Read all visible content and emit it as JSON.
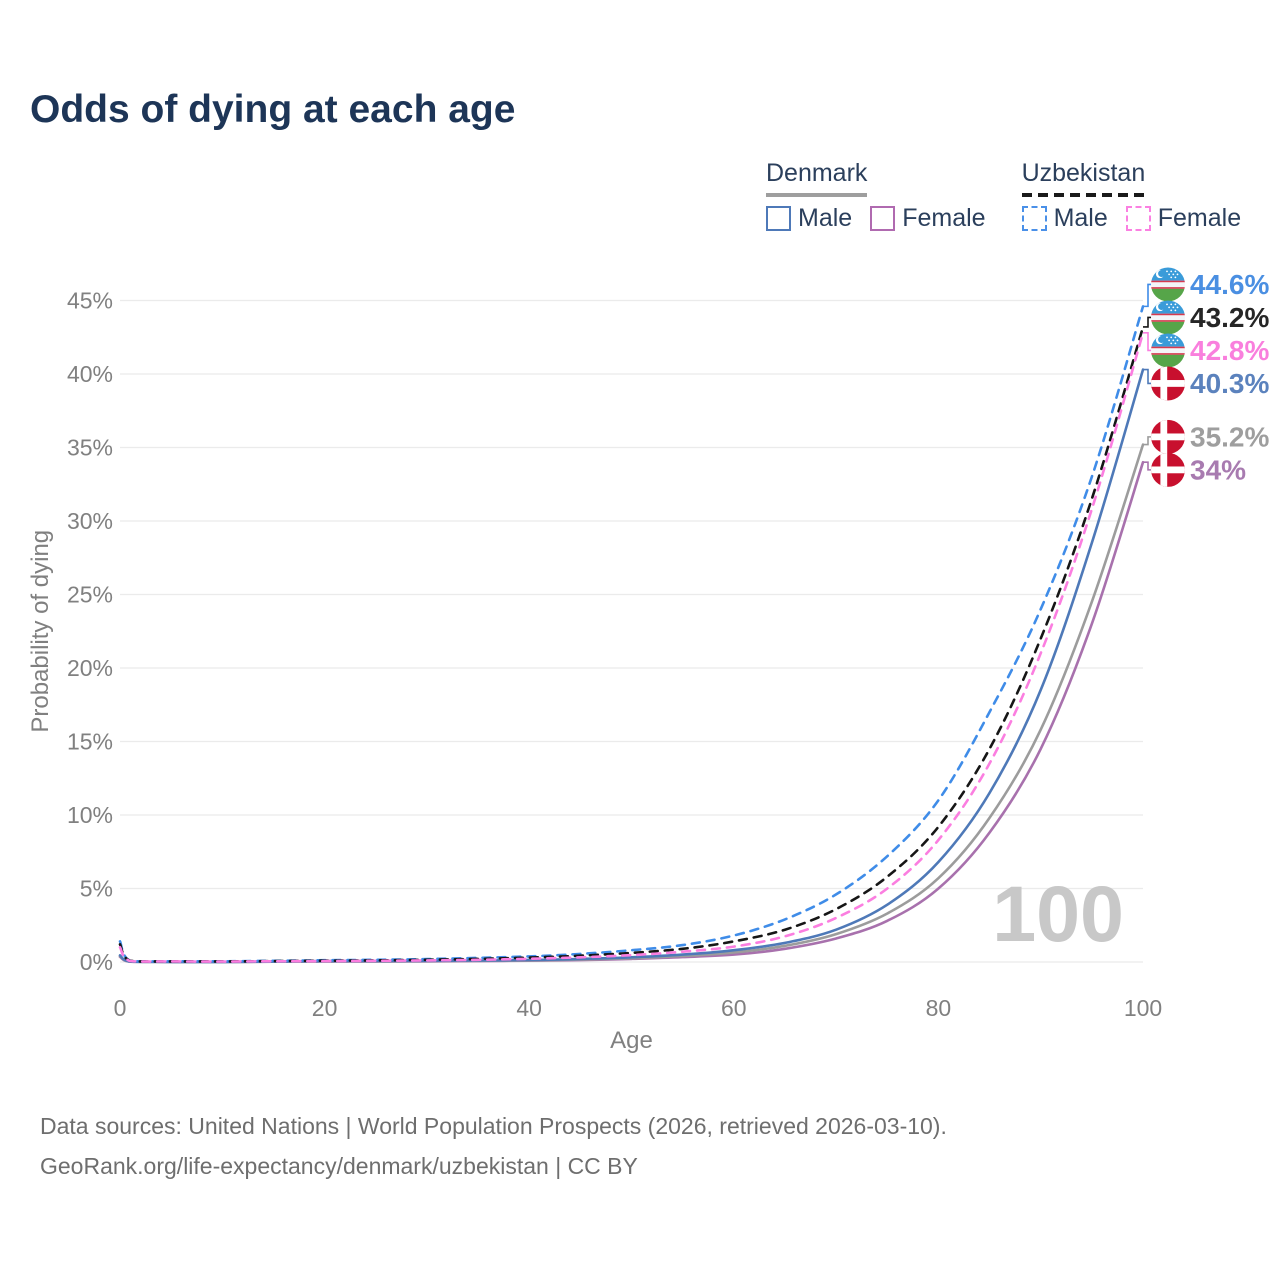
{
  "title": "Odds of dying at each age",
  "legend": {
    "groups": [
      {
        "country": "Denmark",
        "line_style": "solid",
        "underline_color": "#9e9e9e",
        "items": [
          {
            "label": "Male",
            "color": "#4e79b8",
            "dash": false
          },
          {
            "label": "Female",
            "color": "#b06ab0",
            "dash": false
          }
        ]
      },
      {
        "country": "Uzbekistan",
        "line_style": "dashed",
        "underline_color": "#1a1a1a",
        "items": [
          {
            "label": "Male",
            "color": "#4a90e8",
            "dash": true
          },
          {
            "label": "Female",
            "color": "#fb80e2",
            "dash": true
          }
        ]
      }
    ]
  },
  "chart_data": {
    "type": "line",
    "title": "Odds of dying at each age",
    "xlabel": "Age",
    "ylabel": "Probability of dying",
    "x_ticks": [
      0,
      20,
      40,
      60,
      80,
      100
    ],
    "y_ticks": [
      "0%",
      "5%",
      "10%",
      "15%",
      "20%",
      "25%",
      "30%",
      "35%",
      "40%",
      "45%"
    ],
    "xlim": [
      0,
      100
    ],
    "ylim": [
      0,
      47
    ],
    "grid": "horizontal",
    "legend_position": "top-right",
    "watermark": "100",
    "x": [
      0,
      1,
      5,
      10,
      15,
      20,
      25,
      30,
      35,
      40,
      45,
      50,
      55,
      60,
      65,
      70,
      75,
      80,
      85,
      90,
      95,
      100
    ],
    "series": [
      {
        "name": "Uzbekistan Male",
        "country": "Uzbekistan",
        "flag": "uz",
        "dash": true,
        "color": "#3f8ce8",
        "end_label": "44.6%",
        "end_label_color": "#4a8fe2",
        "values": [
          1.4,
          0.09,
          0.05,
          0.05,
          0.08,
          0.12,
          0.15,
          0.2,
          0.28,
          0.38,
          0.55,
          0.8,
          1.15,
          1.8,
          2.9,
          4.6,
          7.2,
          11.0,
          17.0,
          24.0,
          33.0,
          44.6
        ]
      },
      {
        "name": "Uzbekistan Both sexes",
        "country": "Uzbekistan",
        "flag": "uz",
        "dash": true,
        "color": "#161616",
        "end_label": "43.2%",
        "end_label_color": "#262626",
        "values": [
          1.2,
          0.08,
          0.04,
          0.04,
          0.06,
          0.09,
          0.11,
          0.15,
          0.21,
          0.3,
          0.43,
          0.62,
          0.9,
          1.4,
          2.2,
          3.6,
          5.8,
          9.2,
          14.5,
          22.0,
          31.5,
          43.2
        ]
      },
      {
        "name": "Uzbekistan Female",
        "country": "Uzbekistan",
        "flag": "uz",
        "dash": true,
        "color": "#fb7ee0",
        "end_label": "42.8%",
        "end_label_color": "#f97fdd",
        "values": [
          1.0,
          0.07,
          0.04,
          0.03,
          0.05,
          0.06,
          0.08,
          0.11,
          0.15,
          0.22,
          0.32,
          0.47,
          0.7,
          1.05,
          1.75,
          3.0,
          5.0,
          8.3,
          13.5,
          21.0,
          30.8,
          42.8
        ]
      },
      {
        "name": "Denmark Male",
        "country": "Denmark",
        "flag": "dk",
        "dash": false,
        "color": "#4e79b8",
        "end_label": "40.3%",
        "end_label_color": "#5b82bd",
        "values": [
          0.45,
          0.03,
          0.01,
          0.01,
          0.03,
          0.06,
          0.07,
          0.08,
          0.1,
          0.14,
          0.21,
          0.32,
          0.5,
          0.8,
          1.3,
          2.2,
          3.9,
          6.8,
          11.5,
          18.5,
          28.5,
          40.3
        ]
      },
      {
        "name": "Denmark Both sexes",
        "country": "Denmark",
        "flag": "dk",
        "dash": false,
        "color": "#9c9c9c",
        "end_label": "35.2%",
        "end_label_color": "#9e9e9e",
        "values": [
          0.4,
          0.03,
          0.01,
          0.01,
          0.02,
          0.04,
          0.05,
          0.06,
          0.08,
          0.11,
          0.17,
          0.26,
          0.41,
          0.65,
          1.1,
          1.9,
          3.3,
          5.7,
          9.8,
          15.8,
          24.5,
          35.2
        ]
      },
      {
        "name": "Denmark Female",
        "country": "Denmark",
        "flag": "dk",
        "dash": false,
        "color": "#a871ad",
        "end_label": "34%",
        "end_label_color": "#a87bb0",
        "values": [
          0.35,
          0.02,
          0.01,
          0.01,
          0.02,
          0.03,
          0.03,
          0.04,
          0.06,
          0.09,
          0.13,
          0.21,
          0.33,
          0.5,
          0.9,
          1.6,
          2.8,
          5.0,
          8.8,
          14.5,
          23.0,
          34.0
        ]
      }
    ]
  },
  "colors": {
    "title": "#1d3557",
    "tick": "#808080",
    "grid": "#ebebeb",
    "watermark": "#c8c8c8",
    "footer": "#6e6e6e",
    "denmark_flag_red": "#c8102e",
    "uzbekistan_flag_blue": "#3a9bd9",
    "uzbekistan_flag_green": "#56a549",
    "uzbekistan_flag_red": "#d63b4f"
  },
  "footer": {
    "line1": "Data sources: United Nations | World Population Prospects (2026, retrieved 2026-03-10).",
    "line2": "GeoRank.org/life-expectancy/denmark/uzbekistan | CC BY"
  }
}
